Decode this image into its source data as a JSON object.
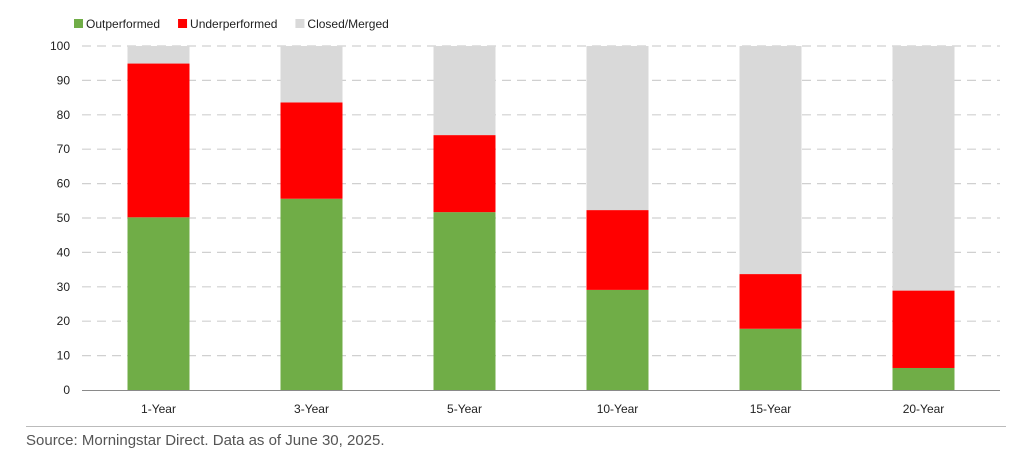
{
  "chart_data": {
    "type": "bar",
    "stacked": true,
    "categories": [
      "1-Year",
      "3-Year",
      "5-Year",
      "10-Year",
      "15-Year",
      "20-Year"
    ],
    "series": [
      {
        "name": "Outperformed",
        "color": "#70ad47",
        "values": [
          50.2,
          55.6,
          51.7,
          29.1,
          17.8,
          6.4
        ]
      },
      {
        "name": "Underperformed",
        "color": "#ff0000",
        "values": [
          44.7,
          28.0,
          22.4,
          23.2,
          15.9,
          22.5
        ]
      },
      {
        "name": "Closed/Merged",
        "color": "#d9d9d9",
        "values": [
          5.1,
          16.4,
          25.9,
          47.7,
          66.3,
          71.1
        ]
      }
    ],
    "ylim": [
      0,
      100
    ],
    "yticks": [
      0,
      10,
      20,
      30,
      40,
      50,
      60,
      70,
      80,
      90,
      100
    ],
    "grid": "horizontal-dashed",
    "legend": "top-left"
  },
  "source": "Source: Morningstar Direct. Data as of June 30, 2025."
}
